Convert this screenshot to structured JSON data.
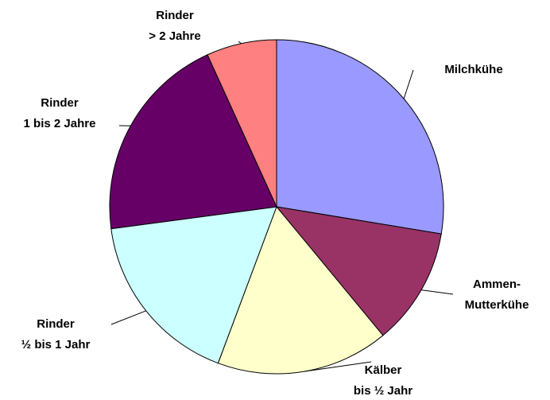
{
  "chart_data": {
    "type": "pie",
    "categories": [
      [
        "Milchkühe"
      ],
      [
        "Ammen-",
        "Mutterkühe"
      ],
      [
        "Kälber",
        "bis ½ Jahr"
      ],
      [
        "Rinder",
        "½ bis 1 Jahr"
      ],
      [
        "Rinder",
        "1 bis 2 Jahre"
      ],
      [
        "Rinder",
        "> 2 Jahre"
      ]
    ],
    "values": [
      27.6,
      11.4,
      16.7,
      17.2,
      20.3,
      6.8
    ],
    "colors": [
      "#9999ff",
      "#993366",
      "#ffffcc",
      "#ccffff",
      "#660066",
      "#ff8080"
    ]
  }
}
